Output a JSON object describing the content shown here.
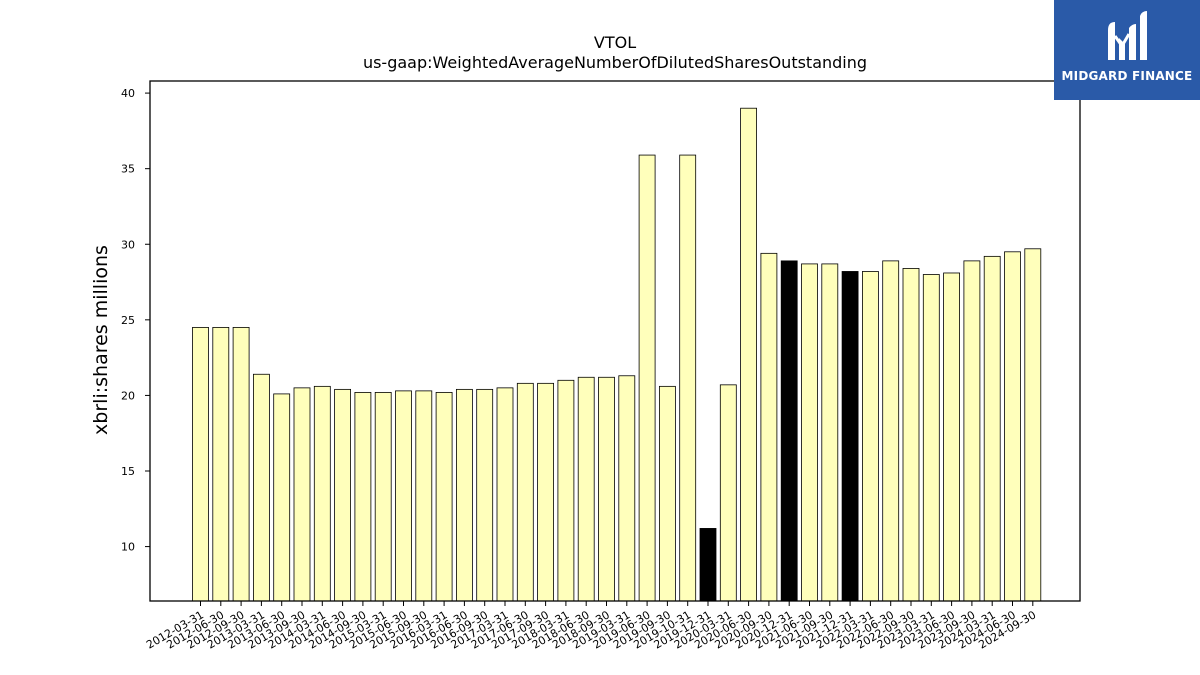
{
  "logo": {
    "text": "MIDGARD FINANCE"
  },
  "chart_data": {
    "type": "bar",
    "title": "VTOL",
    "subtitle": "us-gaap:WeightedAverageNumberOfDilutedSharesOutstanding",
    "xlabel": "",
    "ylabel": "xbrli:shares millions",
    "ylim": [
      6.4,
      40.8
    ],
    "yticks": [
      10,
      15,
      20,
      25,
      30,
      35,
      40
    ],
    "grid": false,
    "colors": {
      "normal": "#ffffbb",
      "highlight": "#000000",
      "edge": "#000000"
    },
    "categories": [
      "2012-03-31",
      "2012-06-30",
      "2012-09-30",
      "2013-03-31",
      "2013-06-30",
      "2013-09-30",
      "2014-03-31",
      "2014-06-30",
      "2014-09-30",
      "2015-03-31",
      "2015-06-30",
      "2015-09-30",
      "2016-03-31",
      "2016-06-30",
      "2016-09-30",
      "2017-03-31",
      "2017-06-30",
      "2017-09-30",
      "2018-03-31",
      "2018-06-30",
      "2018-09-30",
      "2019-03-31",
      "2019-06-30",
      "2019-09-30",
      "2019-10-31",
      "2019-12-31",
      "2020-03-31",
      "2020-06-30",
      "2020-09-30",
      "2020-12-31",
      "2021-06-30",
      "2021-09-30",
      "2021-12-31",
      "2022-03-31",
      "2022-06-30",
      "2022-09-30",
      "2023-03-31",
      "2023-06-30",
      "2023-09-30",
      "2024-03-31",
      "2024-06-30",
      "2024-09-30"
    ],
    "values": [
      24.5,
      24.5,
      24.5,
      21.4,
      20.1,
      20.5,
      20.6,
      20.4,
      20.2,
      20.2,
      20.3,
      20.3,
      20.2,
      20.4,
      20.4,
      20.5,
      20.8,
      20.8,
      21.0,
      21.2,
      21.2,
      21.3,
      35.9,
      20.6,
      35.9,
      11.2,
      20.7,
      39.0,
      29.4,
      28.9,
      28.7,
      28.7,
      28.2,
      28.2,
      28.9,
      28.4,
      28.0,
      28.1,
      28.9,
      29.2,
      29.5,
      29.7
    ],
    "highlighted": [
      false,
      false,
      false,
      false,
      false,
      false,
      false,
      false,
      false,
      false,
      false,
      false,
      false,
      false,
      false,
      false,
      false,
      false,
      false,
      false,
      false,
      false,
      false,
      false,
      false,
      true,
      false,
      false,
      false,
      true,
      false,
      false,
      true,
      false,
      false,
      false,
      false,
      false,
      false,
      false,
      false,
      false
    ]
  }
}
